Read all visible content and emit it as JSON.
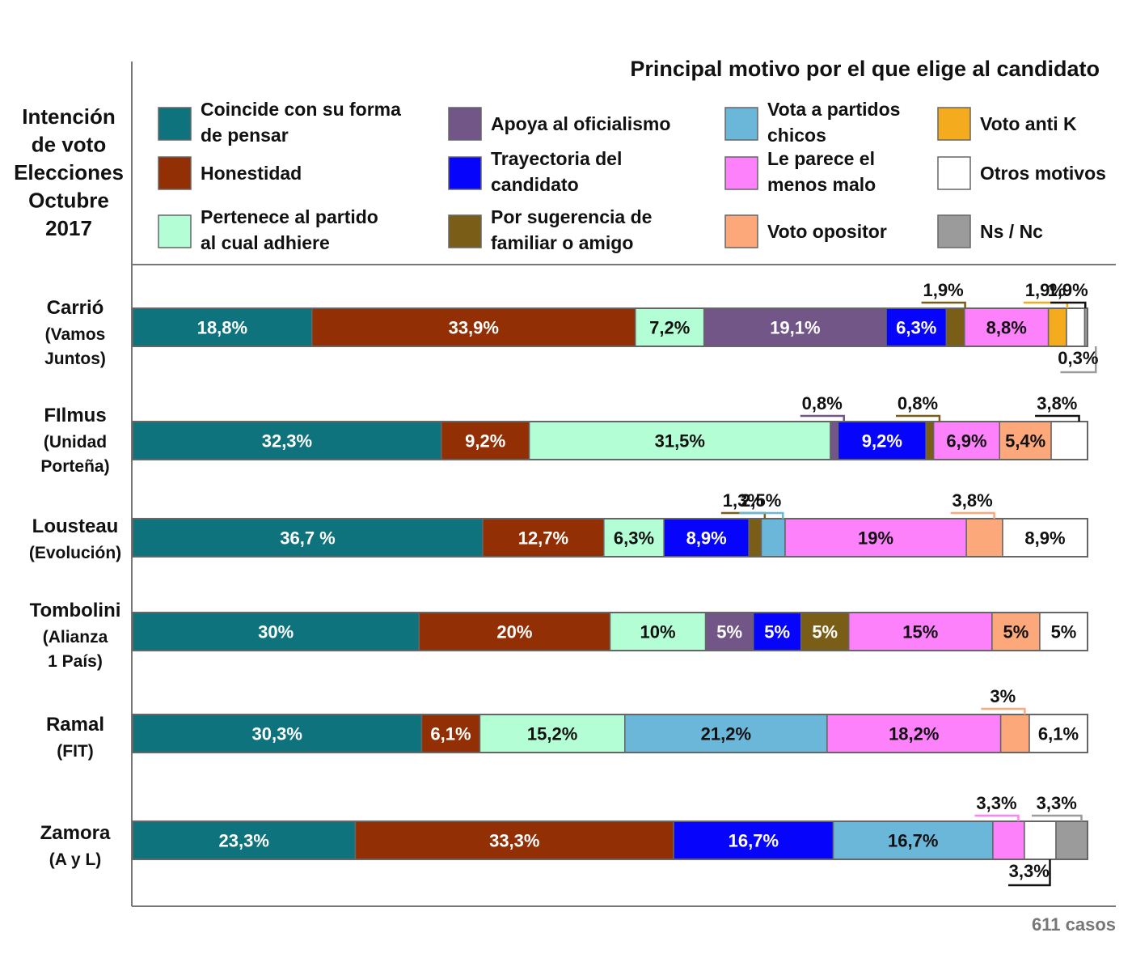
{
  "chart_data": {
    "type": "bar",
    "orientation": "horizontal",
    "stacked": true,
    "percent": true,
    "title": "Principal motivo por el que elige al candidato",
    "side_title": [
      "Intención",
      "de voto",
      "Elecciones",
      "Octubre",
      "2017"
    ],
    "footnote": "611 casos",
    "legend_placement": "top",
    "categories_meta": [
      {
        "key": "coincide",
        "label": [
          "Coincide con su forma",
          "de pensar"
        ],
        "color": "#0e737c",
        "text_color": "#ffffff"
      },
      {
        "key": "honestidad",
        "label": [
          "Honestidad"
        ],
        "color": "#932f04",
        "text_color": "#ffffff"
      },
      {
        "key": "pertenece",
        "label": [
          "Pertenece al partido",
          "al cual adhiere"
        ],
        "color": "#b3fed5",
        "text_color": "#111111"
      },
      {
        "key": "oficialismo",
        "label": [
          "Apoya al oficialismo"
        ],
        "color": "#725687",
        "text_color": "#ffffff"
      },
      {
        "key": "trayectoria",
        "label": [
          "Trayectoria del",
          "candidato"
        ],
        "color": "#0704fb",
        "text_color": "#ffffff"
      },
      {
        "key": "sugerencia",
        "label": [
          "Por sugerencia de",
          "familiar o amigo"
        ],
        "color": "#7a5e17",
        "text_color": "#ffffff"
      },
      {
        "key": "chicos",
        "label": [
          "Vota a partidos",
          "chicos"
        ],
        "color": "#6bb7da",
        "text_color": "#111111"
      },
      {
        "key": "menosmalo",
        "label": [
          "Le parece el",
          "menos malo"
        ],
        "color": "#fe81fc",
        "text_color": "#111111"
      },
      {
        "key": "opositor",
        "label": [
          "Voto opositor"
        ],
        "color": "#fda87b",
        "text_color": "#111111"
      },
      {
        "key": "antik",
        "label": [
          "Voto anti K"
        ],
        "color": "#f5ab1e",
        "text_color": "#111111"
      },
      {
        "key": "otros",
        "label": [
          "Otros motivos"
        ],
        "color": "#ffffff",
        "text_color": "#111111"
      },
      {
        "key": "nsnc",
        "label": [
          "Ns / Nc"
        ],
        "color": "#9b9b9b",
        "text_color": "#111111"
      }
    ],
    "rows": [
      {
        "name": "Carrió",
        "party": [
          "(Vamos",
          "Juntos)"
        ],
        "segments": [
          {
            "cat": "coincide",
            "value": 18.8,
            "label": "18,8%"
          },
          {
            "cat": "honestidad",
            "value": 33.9,
            "label": "33,9%"
          },
          {
            "cat": "pertenece",
            "value": 7.2,
            "label": "7,2%"
          },
          {
            "cat": "oficialismo",
            "value": 19.1,
            "label": "19,1%"
          },
          {
            "cat": "trayectoria",
            "value": 6.3,
            "label": "6,3%"
          },
          {
            "cat": "sugerencia",
            "value": 1.9,
            "label": "1,9%",
            "callout": "above"
          },
          {
            "cat": "menosmalo",
            "value": 8.8,
            "label": "8,8%"
          },
          {
            "cat": "antik",
            "value": 1.9,
            "label": "1,9%",
            "callout": "above"
          },
          {
            "cat": "otros",
            "value": 1.9,
            "label": "1,9%",
            "callout": "above"
          },
          {
            "cat": "nsnc",
            "value": 0.3,
            "label": "0,3%",
            "callout": "below"
          }
        ]
      },
      {
        "name": "FIlmus",
        "party": [
          "(Unidad",
          "Porteña)"
        ],
        "segments": [
          {
            "cat": "coincide",
            "value": 32.3,
            "label": "32,3%"
          },
          {
            "cat": "honestidad",
            "value": 9.2,
            "label": "9,2%"
          },
          {
            "cat": "pertenece",
            "value": 31.5,
            "label": "31,5%"
          },
          {
            "cat": "oficialismo",
            "value": 0.8,
            "label": "0,8%",
            "callout": "above"
          },
          {
            "cat": "trayectoria",
            "value": 9.2,
            "label": "9,2%"
          },
          {
            "cat": "sugerencia",
            "value": 0.8,
            "label": "0,8%",
            "callout": "above"
          },
          {
            "cat": "menosmalo",
            "value": 6.9,
            "label": "6,9%"
          },
          {
            "cat": "opositor",
            "value": 5.4,
            "label": "5,4%"
          },
          {
            "cat": "otros",
            "value": 3.8,
            "label": "3,8%",
            "callout": "above"
          }
        ]
      },
      {
        "name": "Lousteau",
        "party": [
          "(Evolución)"
        ],
        "segments": [
          {
            "cat": "coincide",
            "value": 36.7,
            "label": "36,7 %"
          },
          {
            "cat": "honestidad",
            "value": 12.7,
            "label": "12,7%"
          },
          {
            "cat": "pertenece",
            "value": 6.3,
            "label": "6,3%"
          },
          {
            "cat": "trayectoria",
            "value": 8.9,
            "label": "8,9%"
          },
          {
            "cat": "sugerencia",
            "value": 1.3,
            "label": "1,3%",
            "callout": "above"
          },
          {
            "cat": "chicos",
            "value": 2.5,
            "label": "2,5%",
            "callout": "above"
          },
          {
            "cat": "menosmalo",
            "value": 19,
            "label": "19%"
          },
          {
            "cat": "opositor",
            "value": 3.8,
            "label": "3,8%",
            "callout": "above"
          },
          {
            "cat": "otros",
            "value": 8.9,
            "label": "8,9%"
          }
        ]
      },
      {
        "name": "Tombolini",
        "party": [
          "(Alianza",
          "1 País)"
        ],
        "segments": [
          {
            "cat": "coincide",
            "value": 30,
            "label": "30%"
          },
          {
            "cat": "honestidad",
            "value": 20,
            "label": "20%"
          },
          {
            "cat": "pertenece",
            "value": 10,
            "label": "10%"
          },
          {
            "cat": "oficialismo",
            "value": 5,
            "label": "5%"
          },
          {
            "cat": "trayectoria",
            "value": 5,
            "label": "5%"
          },
          {
            "cat": "sugerencia",
            "value": 5,
            "label": "5%"
          },
          {
            "cat": "menosmalo",
            "value": 15,
            "label": "15%"
          },
          {
            "cat": "opositor",
            "value": 5,
            "label": "5%"
          },
          {
            "cat": "otros",
            "value": 5,
            "label": "5%"
          }
        ]
      },
      {
        "name": "Ramal",
        "party": [
          "(FIT)"
        ],
        "segments": [
          {
            "cat": "coincide",
            "value": 30.3,
            "label": "30,3%"
          },
          {
            "cat": "honestidad",
            "value": 6.1,
            "label": "6,1%"
          },
          {
            "cat": "pertenece",
            "value": 15.2,
            "label": "15,2%"
          },
          {
            "cat": "chicos",
            "value": 21.2,
            "label": "21,2%"
          },
          {
            "cat": "menosmalo",
            "value": 18.2,
            "label": "18,2%"
          },
          {
            "cat": "opositor",
            "value": 3,
            "label": "3%",
            "callout": "above"
          },
          {
            "cat": "otros",
            "value": 6.1,
            "label": "6,1%"
          }
        ]
      },
      {
        "name": "Zamora",
        "party": [
          "(A y L)"
        ],
        "segments": [
          {
            "cat": "coincide",
            "value": 23.3,
            "label": "23,3%"
          },
          {
            "cat": "honestidad",
            "value": 33.3,
            "label": "33,3%"
          },
          {
            "cat": "trayectoria",
            "value": 16.7,
            "label": "16,7%"
          },
          {
            "cat": "chicos",
            "value": 16.7,
            "label": "16,7%"
          },
          {
            "cat": "menosmalo",
            "value": 3.3,
            "label": "3,3%",
            "callout": "above"
          },
          {
            "cat": "otros",
            "value": 3.3,
            "label": "3,3%",
            "callout": "below"
          },
          {
            "cat": "nsnc",
            "value": 3.3,
            "label": "3,3%",
            "callout": "above"
          }
        ]
      }
    ]
  }
}
